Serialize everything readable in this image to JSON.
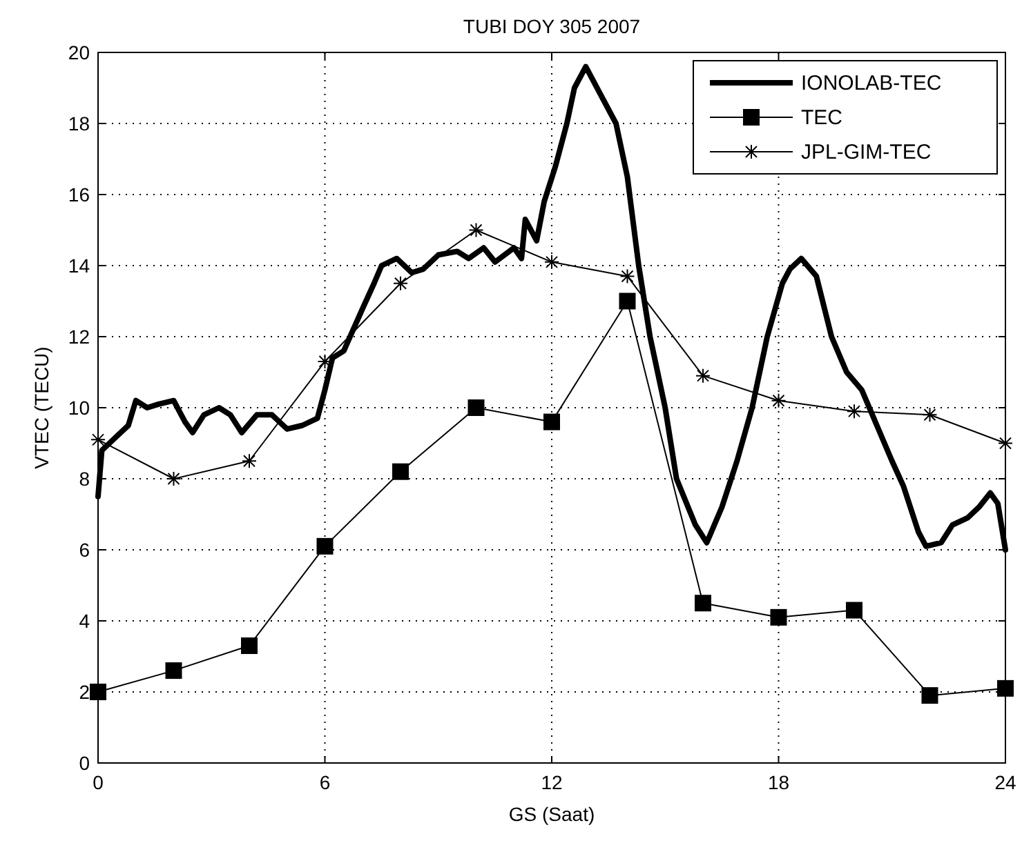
{
  "chart_data": {
    "type": "line",
    "title": "TUBI DOY 305 2007",
    "xlabel": "GS (Saat)",
    "ylabel": "VTEC (TECU)",
    "xlim": [
      0,
      24
    ],
    "xticks": [
      0,
      6,
      12,
      18,
      24
    ],
    "ylim": [
      0,
      20
    ],
    "yticks": [
      0,
      2,
      4,
      6,
      8,
      10,
      12,
      14,
      16,
      18,
      20
    ],
    "grid": true,
    "legend": "top right",
    "series": [
      {
        "name": "IONOLAB-TEC",
        "color": "#000000",
        "marker": "none",
        "x": [
          0,
          0.1,
          0.5,
          0.8,
          1.0,
          1.3,
          1.6,
          2.0,
          2.3,
          2.5,
          2.8,
          3.2,
          3.5,
          3.8,
          4.2,
          4.6,
          5.0,
          5.4,
          5.8,
          6.0,
          6.2,
          6.5,
          7.0,
          7.3,
          7.5,
          7.9,
          8.3,
          8.6,
          9.0,
          9.5,
          9.8,
          10.2,
          10.5,
          11.0,
          11.2,
          11.3,
          11.6,
          11.8,
          12.1,
          12.4,
          12.6,
          12.9,
          13.3,
          13.7,
          14.0,
          14.3,
          14.6,
          15.0,
          15.3,
          15.8,
          16.1,
          16.5,
          16.9,
          17.3,
          17.7,
          18.1,
          18.3,
          18.6,
          19.0,
          19.4,
          19.8,
          20.2,
          20.6,
          21.0,
          21.3,
          21.7,
          21.9,
          22.3,
          22.6,
          23.0,
          23.3,
          23.6,
          23.8,
          24.0
        ],
        "values": [
          7.5,
          8.8,
          9.2,
          9.5,
          10.2,
          10.0,
          10.1,
          10.2,
          9.6,
          9.3,
          9.8,
          10.0,
          9.8,
          9.3,
          9.8,
          9.8,
          9.4,
          9.5,
          9.7,
          10.5,
          11.4,
          11.6,
          12.8,
          13.5,
          14.0,
          14.2,
          13.8,
          13.9,
          14.3,
          14.4,
          14.2,
          14.5,
          14.1,
          14.5,
          14.2,
          15.3,
          14.7,
          15.8,
          16.8,
          18.0,
          19.0,
          19.6,
          18.8,
          18.0,
          16.5,
          14.0,
          12.0,
          10.0,
          8.0,
          6.7,
          6.2,
          7.2,
          8.5,
          10.0,
          12.0,
          13.5,
          13.9,
          14.2,
          13.7,
          12.0,
          11.0,
          10.5,
          9.5,
          8.5,
          7.8,
          6.5,
          6.1,
          6.2,
          6.7,
          6.9,
          7.2,
          7.6,
          7.3,
          6.0
        ]
      },
      {
        "name": "TEC",
        "color": "#000000",
        "marker": "square",
        "x": [
          0,
          2,
          4,
          6,
          8,
          10,
          12,
          14,
          16,
          18,
          20,
          22,
          24
        ],
        "values": [
          2.0,
          2.6,
          3.3,
          6.1,
          8.2,
          10.0,
          9.6,
          13.0,
          4.5,
          4.1,
          4.3,
          1.9,
          2.1
        ]
      },
      {
        "name": "JPL-GIM-TEC",
        "color": "#000000",
        "marker": "cross",
        "x": [
          0,
          2,
          4,
          6,
          8,
          10,
          12,
          14,
          16,
          18,
          20,
          22,
          24
        ],
        "values": [
          9.1,
          8.0,
          8.5,
          11.3,
          13.5,
          15.0,
          14.1,
          13.7,
          10.9,
          10.2,
          9.9,
          9.8,
          9.0
        ]
      }
    ]
  }
}
